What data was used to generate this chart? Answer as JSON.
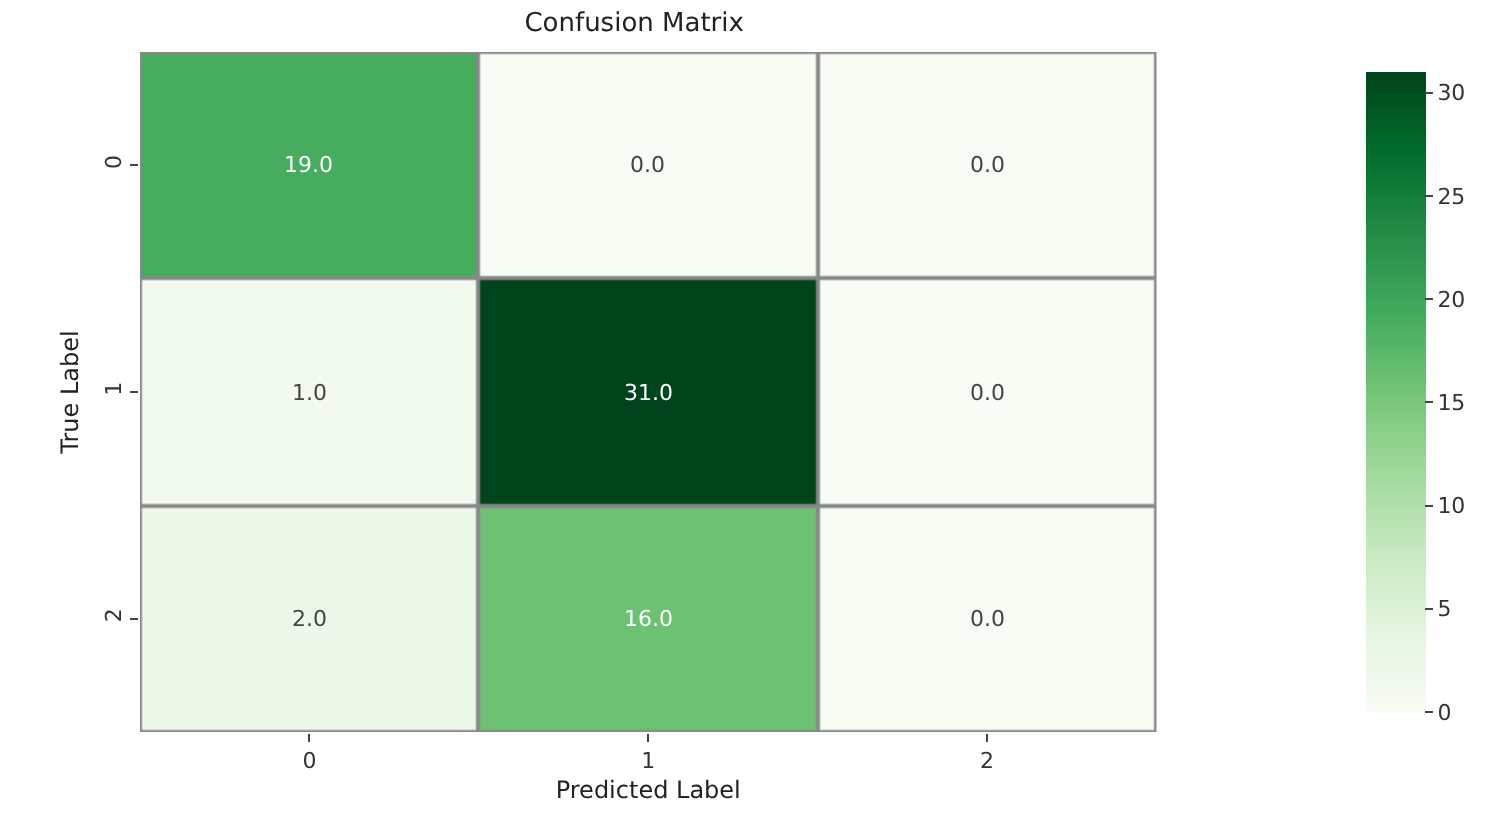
{
  "chart_data": {
    "type": "heatmap",
    "title": "Confusion Matrix",
    "xlabel": "Predicted Label",
    "ylabel": "True Label",
    "categories": [
      "0",
      "1",
      "2"
    ],
    "y_categories": [
      "0",
      "1",
      "2"
    ],
    "cells": [
      [
        19,
        0,
        0
      ],
      [
        1,
        31,
        0
      ],
      [
        2,
        16,
        0
      ]
    ],
    "cell_labels": [
      [
        "19.0",
        "0.0",
        "0.0"
      ],
      [
        "1.0",
        "31.0",
        "0.0"
      ],
      [
        "2.0",
        "16.0",
        "0.0"
      ]
    ],
    "clim": [
      0,
      31
    ],
    "cticks": [
      0,
      5,
      10,
      15,
      20,
      25,
      30
    ]
  }
}
